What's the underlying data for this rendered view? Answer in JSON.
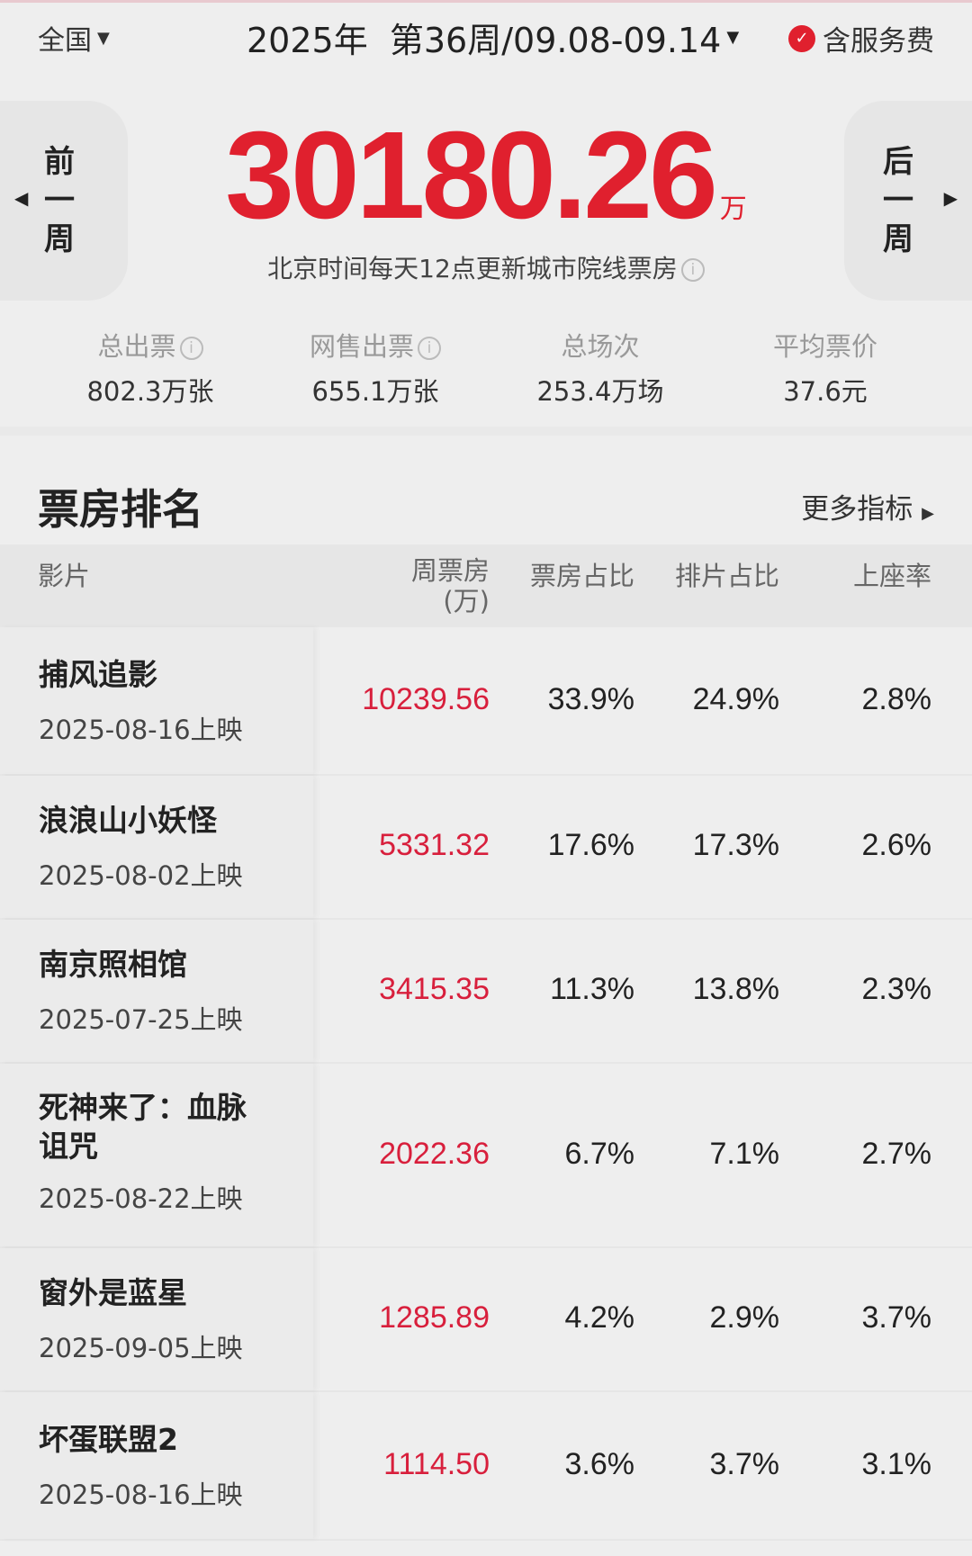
{
  "header": {
    "region": "全国",
    "week": "2025年  第36周/09.08-09.14",
    "service_fee": "含服务费",
    "service_fee_checked": true
  },
  "nav": {
    "prev": [
      "前",
      "一",
      "周"
    ],
    "next": [
      "后",
      "一",
      "周"
    ]
  },
  "total": {
    "value": "30180.26",
    "unit": "万",
    "note": "北京时间每天12点更新城市院线票房"
  },
  "stats": [
    {
      "label": "总出票",
      "value": "802.3万张",
      "info": true
    },
    {
      "label": "网售出票",
      "value": "655.1万张",
      "info": true
    },
    {
      "label": "总场次",
      "value": "253.4万场",
      "info": false
    },
    {
      "label": "平均票价",
      "value": "37.6元",
      "info": false
    }
  ],
  "ranking": {
    "title": "票房排名",
    "more": "更多指标",
    "columns": {
      "film": "影片",
      "box": "周票房",
      "box_unit": "(万)",
      "box_share": "票房占比",
      "show_share": "排片占比",
      "occupancy": "上座率"
    },
    "rows": [
      {
        "title": "捕风追影",
        "release": "2025-08-16上映",
        "box": "10239.56",
        "box_share": "33.9%",
        "show_share": "24.9%",
        "occupancy": "2.8%"
      },
      {
        "title": "浪浪山小妖怪",
        "release": "2025-08-02上映",
        "box": "5331.32",
        "box_share": "17.6%",
        "show_share": "17.3%",
        "occupancy": "2.6%"
      },
      {
        "title": "南京照相馆",
        "release": "2025-07-25上映",
        "box": "3415.35",
        "box_share": "11.3%",
        "show_share": "13.8%",
        "occupancy": "2.3%"
      },
      {
        "title": "死神来了：血脉诅咒",
        "release": "2025-08-22上映",
        "box": "2022.36",
        "box_share": "6.7%",
        "show_share": "7.1%",
        "occupancy": "2.7%"
      },
      {
        "title": "窗外是蓝星",
        "release": "2025-09-05上映",
        "box": "1285.89",
        "box_share": "4.2%",
        "show_share": "2.9%",
        "occupancy": "3.7%"
      },
      {
        "title": "坏蛋联盟2",
        "release": "2025-08-16上映",
        "box": "1114.50",
        "box_share": "3.6%",
        "show_share": "3.7%",
        "occupancy": "3.1%"
      }
    ]
  },
  "colors": {
    "accent": "#e0202e",
    "box_value": "#d81f3c",
    "background": "#eeeeee"
  }
}
